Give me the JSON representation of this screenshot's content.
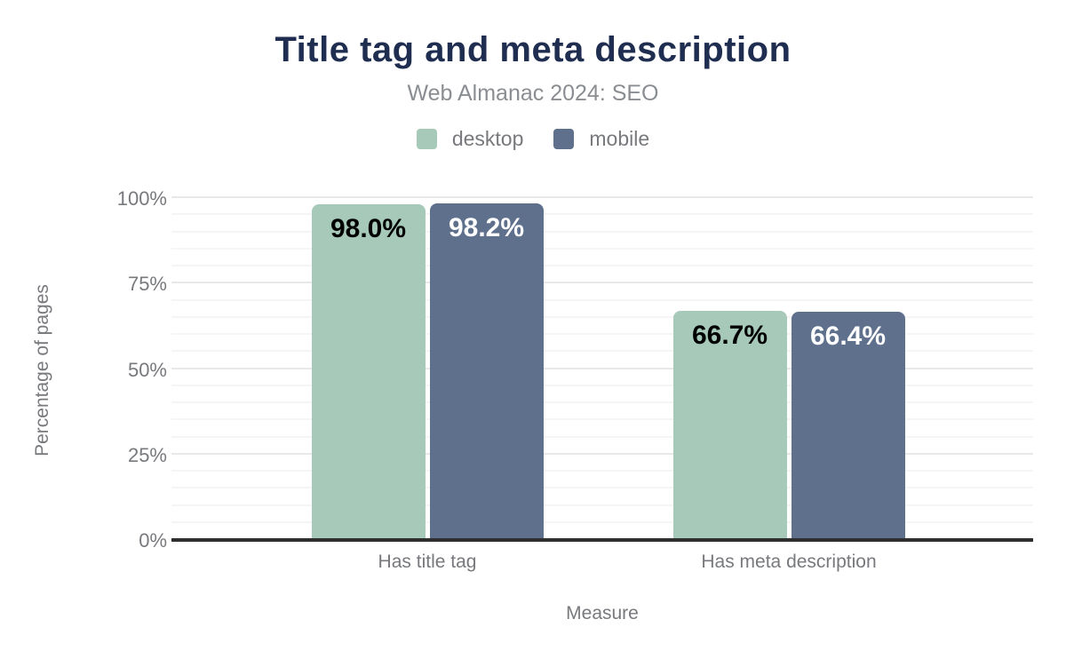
{
  "chart_data": {
    "type": "bar",
    "title": "Title tag and meta description",
    "subtitle": "Web Almanac 2024: SEO",
    "xlabel": "Measure",
    "ylabel": "Percentage of pages",
    "ylim": [
      0,
      100
    ],
    "yticks": [
      {
        "value": 0,
        "label": "0%"
      },
      {
        "value": 25,
        "label": "25%"
      },
      {
        "value": 50,
        "label": "50%"
      },
      {
        "value": 75,
        "label": "75%"
      },
      {
        "value": 100,
        "label": "100%"
      }
    ],
    "minor_grid_step": 5,
    "grid": true,
    "legend_position": "top",
    "categories": [
      "Has title tag",
      "Has meta description"
    ],
    "series": [
      {
        "name": "desktop",
        "color": "#a7c9ba",
        "label_color": "#000000",
        "values": [
          98.0,
          66.7
        ],
        "display_values": [
          "98.0%",
          "66.7%"
        ]
      },
      {
        "name": "mobile",
        "color": "#5e708c",
        "label_color": "#ffffff",
        "values": [
          98.2,
          66.4
        ],
        "display_values": [
          "98.2%",
          "66.4%"
        ]
      }
    ],
    "colors": {
      "title": "#1f2e50",
      "subtitle": "#8a8d91",
      "axis_text": "#77797d",
      "axis_line": "#2e2e2e",
      "grid_major": "#e8e8e8",
      "grid_minor": "#f5f5f5"
    }
  }
}
